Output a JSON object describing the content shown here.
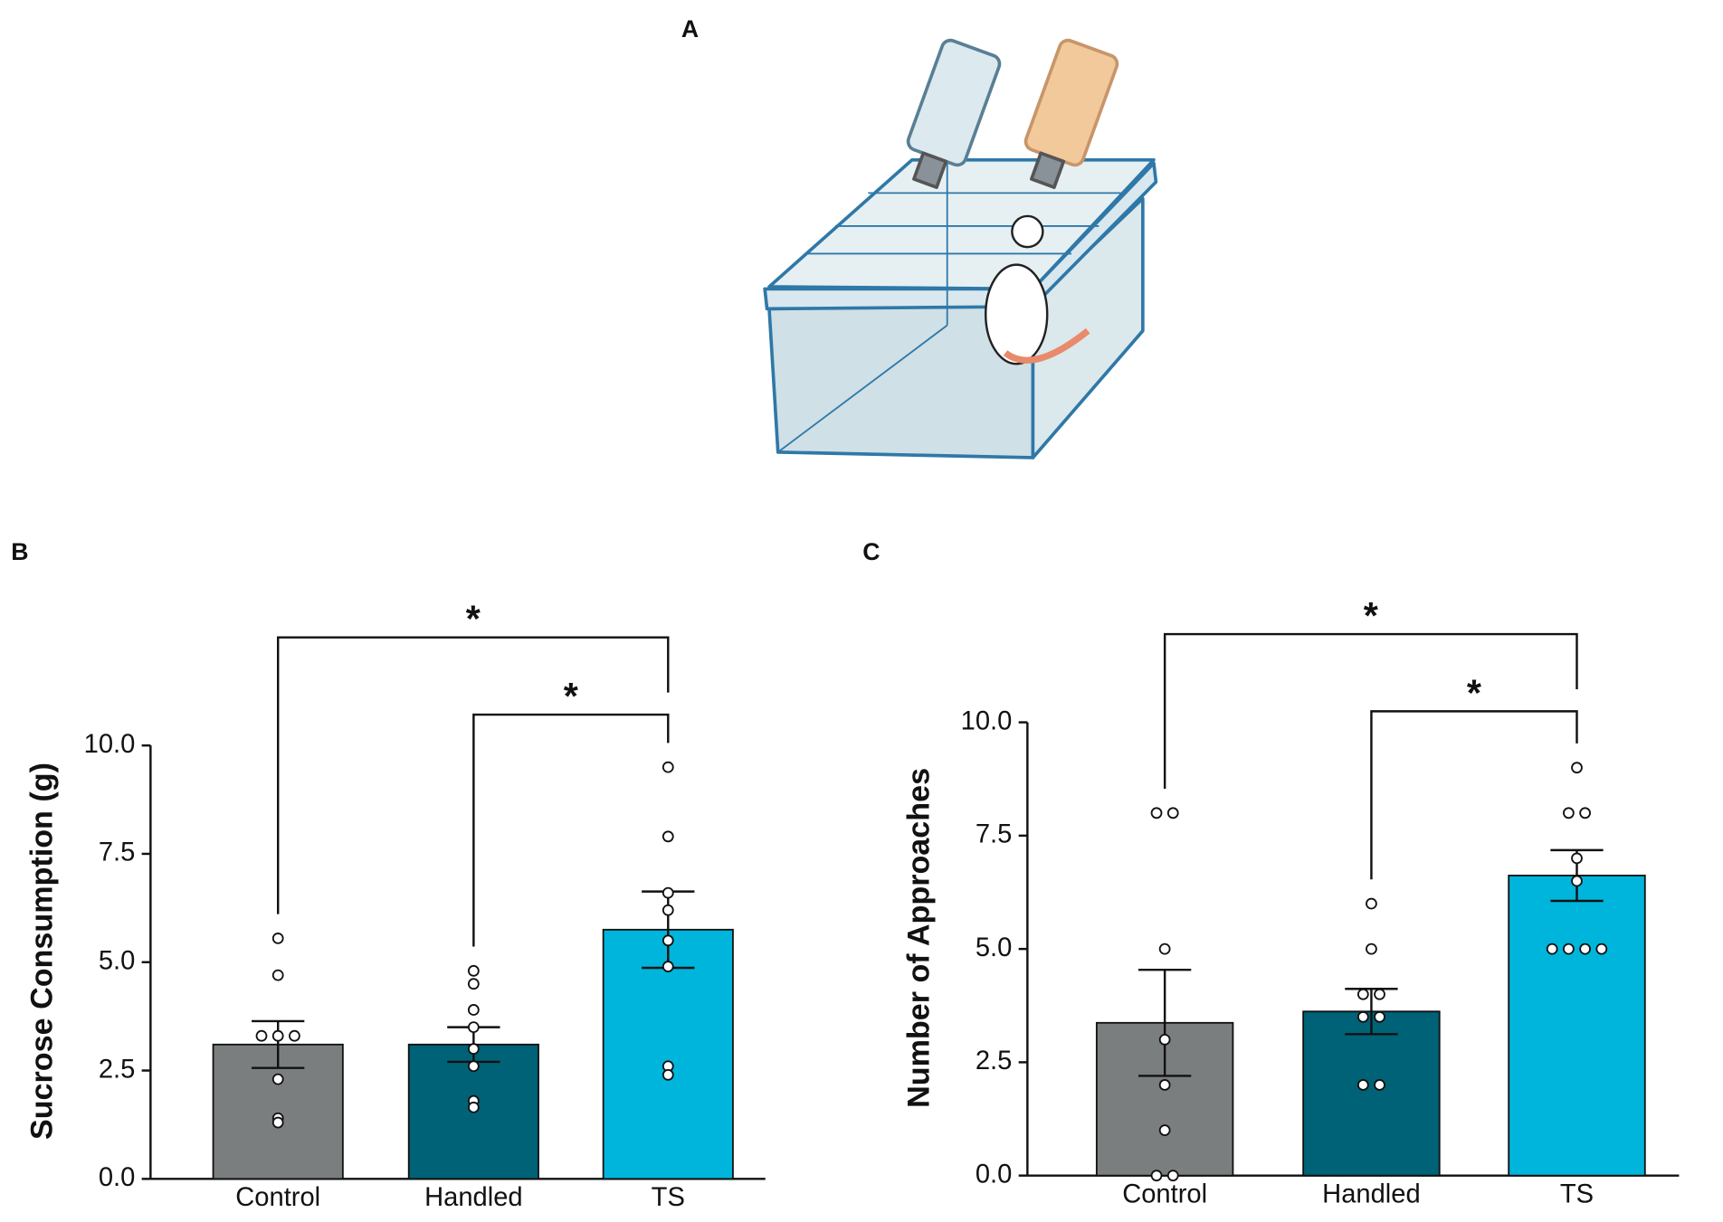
{
  "panel_labels": [
    "A",
    "B",
    "C"
  ],
  "chart_data": [
    {
      "type": "bar",
      "ylabel": "Sucrose Consumption (g)",
      "categories": [
        "Control",
        "Handled",
        "TS"
      ],
      "colors": [
        "#7b7e7f",
        "#006277",
        "#00b5dc"
      ],
      "values": [
        3.1,
        3.1,
        5.75
      ],
      "errors": [
        0.54,
        0.4,
        0.88
      ],
      "points": [
        [
          5.55,
          4.7,
          3.3,
          3.3,
          3.3,
          2.3,
          1.4,
          1.3
        ],
        [
          4.8,
          4.5,
          3.9,
          3.5,
          3.0,
          2.6,
          1.8,
          1.65
        ],
        [
          9.5,
          7.9,
          6.6,
          6.2,
          5.5,
          4.9,
          2.6,
          2.4
        ]
      ],
      "ylim": [
        0,
        10
      ],
      "yticks": [
        {
          "value": 0,
          "label": "0.0"
        },
        2.5,
        {
          "value": 5,
          "label": "5.0"
        },
        7.5,
        {
          "value": 10,
          "label": "10.0"
        }
      ],
      "significance": [
        {
          "from": 0,
          "to": 2,
          "label": "*"
        },
        {
          "from": 1,
          "to": 2,
          "label": "*"
        }
      ]
    },
    {
      "type": "bar",
      "ylabel": "Number of Approaches",
      "categories": [
        "Control",
        "Handled",
        "TS"
      ],
      "colors": [
        "#7b7e7f",
        "#006277",
        "#00b5dc"
      ],
      "values": [
        3.37,
        3.62,
        6.62
      ],
      "errors": [
        1.17,
        0.5,
        0.56
      ],
      "points": [
        [
          8,
          8,
          5,
          3,
          2,
          1,
          0,
          0
        ],
        [
          6,
          5,
          4,
          4,
          3.5,
          3.5,
          2,
          2
        ],
        [
          9,
          8,
          8,
          7,
          6.5,
          5,
          5,
          5,
          5
        ]
      ],
      "ylim": [
        0,
        10
      ],
      "yticks": [
        {
          "value": 0,
          "label": "0.0"
        },
        2.5,
        {
          "value": 5,
          "label": "5.0"
        },
        7.5,
        {
          "value": 10,
          "label": "10.0"
        }
      ],
      "significance": [
        {
          "from": 0,
          "to": 2,
          "label": "*"
        },
        {
          "from": 1,
          "to": 2,
          "label": "*"
        }
      ]
    }
  ]
}
